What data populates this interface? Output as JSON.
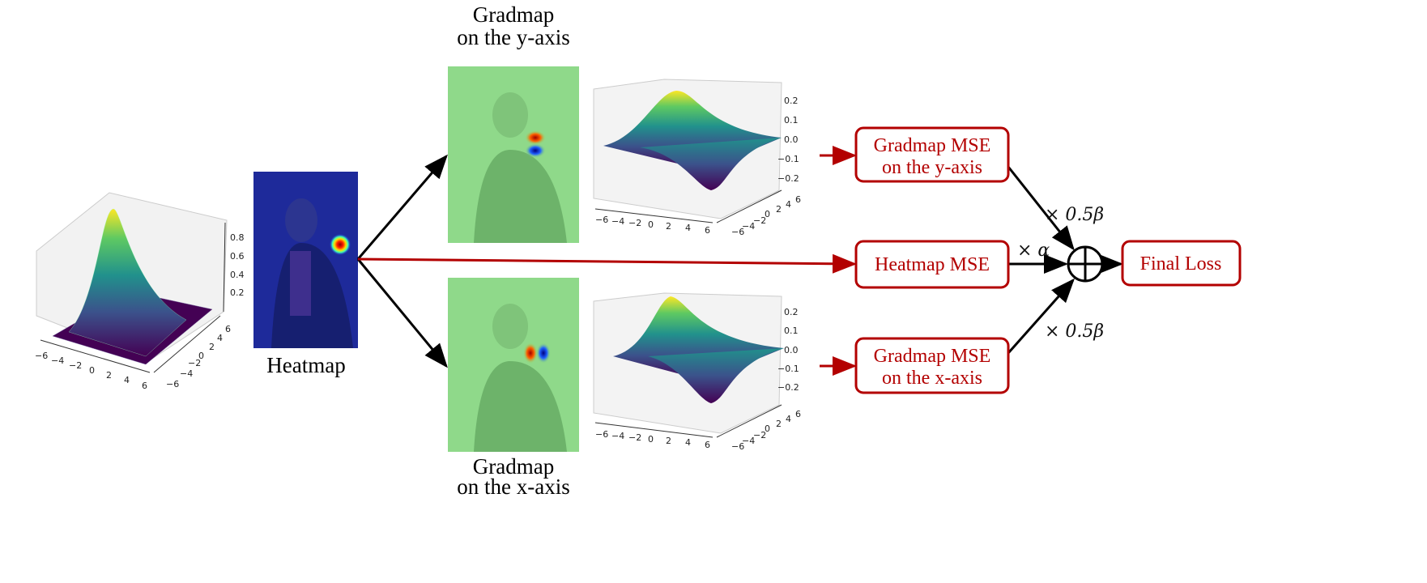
{
  "colors": {
    "loss_red": "#b30000",
    "arrow_black": "#000000"
  },
  "heatmap": {
    "label": "Heatmap"
  },
  "gradmap_y": {
    "title_line1": "Gradmap",
    "title_line2": "on the y-axis"
  },
  "gradmap_x": {
    "title_line1": "Gradmap",
    "title_line2": "on the x-axis"
  },
  "plots": {
    "heatmap_surface": {
      "z_ticks": [
        "0.8",
        "0.6",
        "0.4",
        "0.2"
      ],
      "x_ticks": [
        "−6",
        "−4",
        "−2",
        "0",
        "2",
        "4",
        "6"
      ],
      "y_ticks": [
        "−6",
        "−4",
        "−2",
        "0",
        "2",
        "4",
        "6"
      ]
    },
    "grad_y_surface": {
      "z_ticks": [
        "0.2",
        "0.1",
        "0.0",
        "−0.1",
        "−0.2"
      ],
      "x_ticks": [
        "−6",
        "−4",
        "−2",
        "0",
        "2",
        "4",
        "6"
      ],
      "y_ticks": [
        "−6",
        "−4",
        "−2",
        "0",
        "2",
        "4",
        "6"
      ]
    },
    "grad_x_surface": {
      "z_ticks": [
        "0.2",
        "0.1",
        "0.0",
        "−0.1",
        "−0.2"
      ],
      "x_ticks": [
        "−6",
        "−4",
        "−2",
        "0",
        "2",
        "4",
        "6"
      ],
      "y_ticks": [
        "−6",
        "−4",
        "−2",
        "0",
        "2",
        "4",
        "6"
      ]
    }
  },
  "losses": {
    "gradmap_y": {
      "line1": "Gradmap MSE",
      "line2": "on the y-axis"
    },
    "heatmap": {
      "line1": "Heatmap MSE"
    },
    "gradmap_x": {
      "line1": "Gradmap MSE",
      "line2": "on the x-axis"
    },
    "final": {
      "line1": "Final Loss"
    }
  },
  "weights": {
    "top": "× 0.5β",
    "middle": "× α",
    "bottom": "× 0.5β"
  }
}
